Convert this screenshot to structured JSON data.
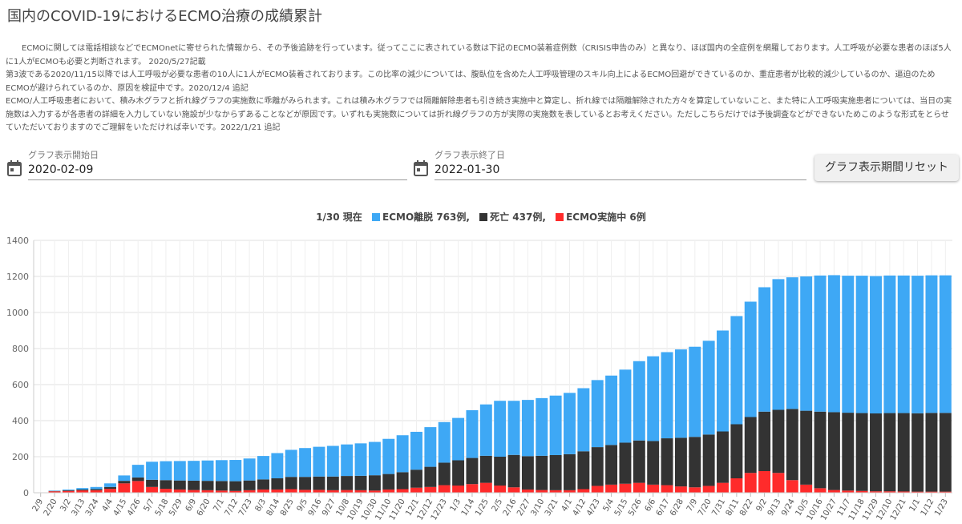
{
  "page": {
    "title": "国内のCOVID-19におけるECMO治療の成績累計",
    "notes": [
      "ECMOに関しては電話相談などでECMOnetに寄せられた情報から、その予後追跡を行っています。従ってここに表されている数は下記のECMO装着症例数（CRISIS申告のみ）と異なり、ほぼ国内の全症例を網羅しております。人工呼吸が必要な患者のほぼ5人に1人がECMOも必要と判断されます。 2020/5/27記載",
      "第3波である2020/11/15以降では人工呼吸が必要な患者の10人に1人がECMO装着されております。この比率の減少については、腹臥位を含めた人工呼吸管理のスキル向上によるECMO回避ができているのか、重症患者が比較的減少しているのか、逼迫のためECMOが避けられているのか、原因を検証中です。2020/12/4 追記",
      "ECMO/人工呼吸患者において、積み木グラフと折れ線グラフの実施数に乖離がみられます。これは積み木グラフでは隔離解除患者も引き続き実施中と算定し、折れ線では隔離解除された方々を算定していないこと、また特に人工呼吸実施患者については、当日の実施数は入力するが各患者の詳細を入力していない施設が少なからずあることなどが原因です。いずれも実施数については折れ線グラフの方が実際の実施数を表しているとお考えください。ただしこちらだけでは予後調査などができないためこのような形式をとらせていただいておりますのでご理解をいただければ幸いです。2022/1/21 追記"
    ]
  },
  "controls": {
    "start_label": "グラフ表示開始日",
    "start_value": "2020-02-09",
    "end_label": "グラフ表示終了日",
    "end_value": "2022-01-30",
    "reset_label": "グラフ表示期間リセット"
  },
  "legend": {
    "prefix": "1/30 現在",
    "items": [
      {
        "label": "ECMO離脱 763例,",
        "color": "#3ea8f5"
      },
      {
        "label": "死亡 437例,",
        "color": "#333333"
      },
      {
        "label": "ECMO実施中 6例",
        "color": "#ff2b2b"
      }
    ]
  },
  "chart_data": {
    "type": "bar",
    "stacked": true,
    "ylim": [
      0,
      1400
    ],
    "yticks": [
      0,
      200,
      400,
      600,
      800,
      1000,
      1200,
      1400
    ],
    "grid": true,
    "x_labels": [
      "2/9",
      "2/20",
      "3/2",
      "3/13",
      "3/24",
      "4/4",
      "4/15",
      "4/26",
      "5/7",
      "5/18",
      "5/29",
      "6/9",
      "6/20",
      "7/1",
      "7/12",
      "7/23",
      "8/3",
      "8/14",
      "8/25",
      "9/5",
      "9/16",
      "9/27",
      "10/8",
      "10/19",
      "10/30",
      "11/10",
      "11/20",
      "12/1",
      "12/12",
      "12/23",
      "1/3",
      "1/14",
      "1/25",
      "2/5",
      "2/16",
      "2/27",
      "3/10",
      "3/21",
      "4/1",
      "4/12",
      "4/23",
      "5/4",
      "5/15",
      "5/26",
      "6/6",
      "6/17",
      "6/28",
      "7/9",
      "7/20",
      "7/31",
      "8/11",
      "8/22",
      "9/2",
      "9/13",
      "9/24",
      "10/5",
      "10/16",
      "10/27",
      "11/7",
      "11/18",
      "11/29",
      "12/10",
      "12/21",
      "1/1",
      "1/12",
      "1/23"
    ],
    "series": [
      {
        "name": "ECMO実施中",
        "color": "#ff2b2b",
        "values": [
          0,
          8,
          10,
          13,
          14,
          22,
          52,
          65,
          32,
          22,
          18,
          15,
          14,
          12,
          10,
          14,
          18,
          18,
          20,
          16,
          16,
          14,
          15,
          14,
          12,
          18,
          20,
          28,
          32,
          42,
          40,
          48,
          55,
          40,
          30,
          18,
          15,
          14,
          14,
          20,
          38,
          45,
          50,
          55,
          45,
          42,
          35,
          30,
          38,
          55,
          80,
          110,
          120,
          110,
          70,
          45,
          25,
          15,
          12,
          10,
          8,
          8,
          7,
          6,
          6,
          6
        ]
      },
      {
        "name": "死亡",
        "color": "#333333",
        "values": [
          0,
          2,
          4,
          5,
          6,
          10,
          14,
          20,
          40,
          48,
          50,
          52,
          52,
          53,
          54,
          54,
          56,
          62,
          68,
          72,
          74,
          76,
          78,
          80,
          85,
          86,
          94,
          100,
          112,
          125,
          140,
          145,
          150,
          160,
          180,
          185,
          190,
          195,
          200,
          210,
          215,
          220,
          228,
          235,
          242,
          260,
          270,
          280,
          285,
          285,
          300,
          310,
          330,
          350,
          395,
          410,
          425,
          432,
          432,
          432,
          432,
          434,
          435,
          435,
          437,
          437
        ]
      },
      {
        "name": "ECMO離脱",
        "color": "#3ea8f5",
        "values": [
          0,
          2,
          4,
          8,
          12,
          20,
          30,
          70,
          100,
          105,
          108,
          110,
          113,
          116,
          118,
          122,
          130,
          140,
          150,
          160,
          165,
          170,
          175,
          180,
          185,
          195,
          205,
          210,
          220,
          225,
          235,
          265,
          285,
          310,
          300,
          312,
          320,
          330,
          340,
          350,
          372,
          385,
          405,
          440,
          470,
          478,
          490,
          500,
          520,
          560,
          600,
          640,
          690,
          725,
          730,
          745,
          755,
          760,
          760,
          762,
          762,
          763,
          763,
          763,
          763,
          763
        ]
      }
    ]
  }
}
